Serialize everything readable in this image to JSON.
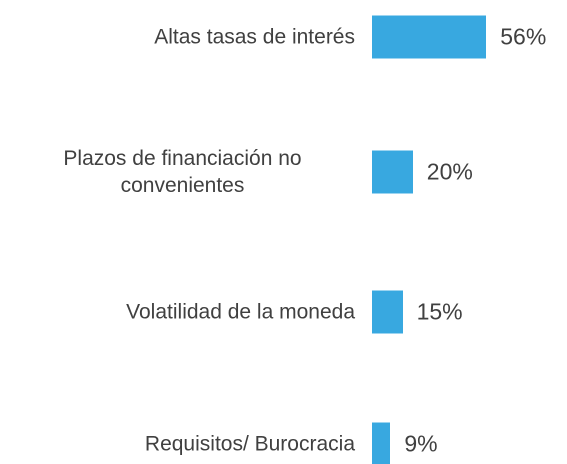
{
  "chart_data": {
    "type": "bar",
    "orientation": "horizontal",
    "categories": [
      "Altas tasas de interés",
      "Plazos de financiación no convenientes",
      "Volatilidad de la moneda",
      "Requisitos/ Burocracia"
    ],
    "values": [
      56,
      20,
      15,
      9
    ],
    "value_labels": [
      "56%",
      "20%",
      "15%",
      "9%"
    ],
    "color": "#38a8e0"
  }
}
